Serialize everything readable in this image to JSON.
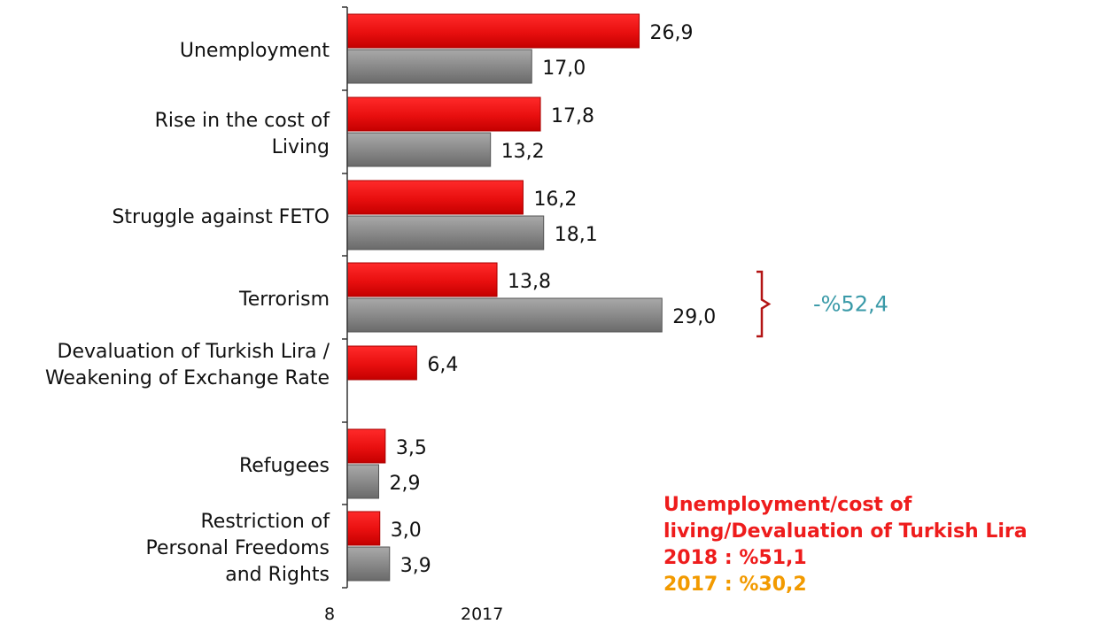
{
  "chart_data": {
    "type": "bar",
    "orientation": "horizontal",
    "categories": [
      [
        "Unemployment"
      ],
      [
        "Rise in the cost of",
        "Living"
      ],
      [
        "Struggle against FETO"
      ],
      [
        "Terrorism"
      ],
      [
        "Devaluation of Turkish Lira /",
        "Weakening of Exchange Rate"
      ],
      [
        "Refugees"
      ],
      [
        "Restriction of",
        "Personal Freedoms",
        "and Rights"
      ]
    ],
    "series": [
      {
        "name": "2018",
        "color": "#ee1111",
        "values": [
          26.9,
          17.8,
          16.2,
          13.8,
          6.4,
          3.5,
          3.0
        ],
        "labels": [
          "26,9",
          "17,8",
          "16,2",
          "13,8",
          "6,4",
          "3,5",
          "3,0"
        ]
      },
      {
        "name": "2017",
        "color": "#808080",
        "values": [
          17.0,
          13.2,
          18.1,
          29.0,
          null,
          2.9,
          3.9
        ],
        "labels": [
          "17,0",
          "13,2",
          "18,1",
          "29,0",
          null,
          "2,9",
          "3,9"
        ]
      }
    ],
    "xlim": [
      0,
      32
    ],
    "grid": false,
    "legend_fragments": [
      "8",
      "2017"
    ],
    "annotation": {
      "text": "-%52,4",
      "category": "Terrorism"
    }
  },
  "note": {
    "lines": [
      "Unemployment/cost of",
      "living/Devaluation of Turkish Lira"
    ],
    "year_2018": "2018 : %51,1",
    "year_2017": "2017 : %30,2"
  }
}
